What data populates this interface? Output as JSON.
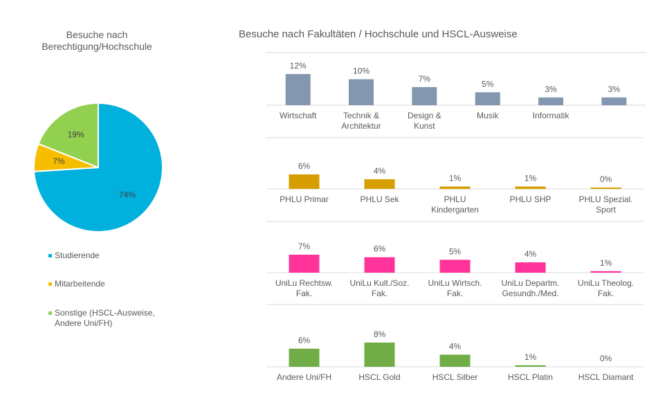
{
  "pie_title_lines": [
    "Besuche nach",
    "Berechtigung/Hochschule"
  ],
  "bar_title": "Besuche nach Fakultäten / Hochschule  und HSCL-Ausweise",
  "chart_data": [
    {
      "type": "pie",
      "title": "Besuche nach Berechtigung/Hochschule",
      "categories": [
        "Studierende",
        "Mitarbeitende",
        "Sonstige (HSCL-Ausweise, Andere Uni/FH)"
      ],
      "legend_lines": [
        [
          "Studierende"
        ],
        [
          "Mitarbeitende"
        ],
        [
          "Sonstige (HSCL-Ausweise,",
          "Andere Uni/FH)"
        ]
      ],
      "values": [
        74,
        7,
        19
      ],
      "labels": [
        "74%",
        "7%",
        "19%"
      ],
      "colors": [
        "#00B0DD",
        "#F7BE00",
        "#92D050"
      ],
      "legend": "bottom"
    },
    {
      "type": "bar",
      "title": "Besuche nach Fakultäten / Hochschule  und HSCL-Ausweise",
      "color": "#8497B0",
      "categories": [
        [
          "Wirtschaft"
        ],
        [
          "Technik &",
          "Architektur"
        ],
        [
          "Design &",
          "Kunst"
        ],
        [
          "Musik"
        ],
        [
          "Informatik"
        ],
        [
          ""
        ]
      ],
      "values": [
        12,
        10,
        7,
        5,
        3,
        3
      ],
      "labels": [
        "12%",
        "10%",
        "7%",
        "5%",
        "3%",
        "3%"
      ]
    },
    {
      "type": "bar",
      "color": "#D69E00",
      "categories": [
        [
          "PHLU Primar"
        ],
        [
          "PHLU Sek"
        ],
        [
          "PHLU",
          "Kindergarten"
        ],
        [
          "PHLU SHP"
        ],
        [
          "PHLU Spezial.",
          "Sport"
        ]
      ],
      "values": [
        6,
        4,
        1,
        1,
        0.3
      ],
      "labels": [
        "6%",
        "4%",
        "1%",
        "1%",
        "0%"
      ]
    },
    {
      "type": "bar",
      "color": "#FF3399",
      "categories": [
        [
          "UniLu Rechtsw.",
          "Fak."
        ],
        [
          "UniLu Kult./Soz.",
          "Fak."
        ],
        [
          "UniLu Wirtsch.",
          "Fak."
        ],
        [
          "UniLu Departm.",
          "Gesundh./Med."
        ],
        [
          "UniLu Theolog.",
          "Fak."
        ]
      ],
      "values": [
        7,
        6,
        5,
        4,
        0.6
      ],
      "labels": [
        "7%",
        "6%",
        "5%",
        "4%",
        "1%"
      ]
    },
    {
      "type": "bar",
      "color": "#70AD47",
      "categories": [
        [
          "Andere Uni/FH"
        ],
        [
          "HSCL Gold"
        ],
        [
          "HSCL Silber"
        ],
        [
          "HSCL Platin"
        ],
        [
          "HSCL  Diamant"
        ]
      ],
      "values": [
        6,
        8,
        4,
        0.5,
        0
      ],
      "labels": [
        "6%",
        "8%",
        "4%",
        "1%",
        "0%"
      ]
    }
  ]
}
